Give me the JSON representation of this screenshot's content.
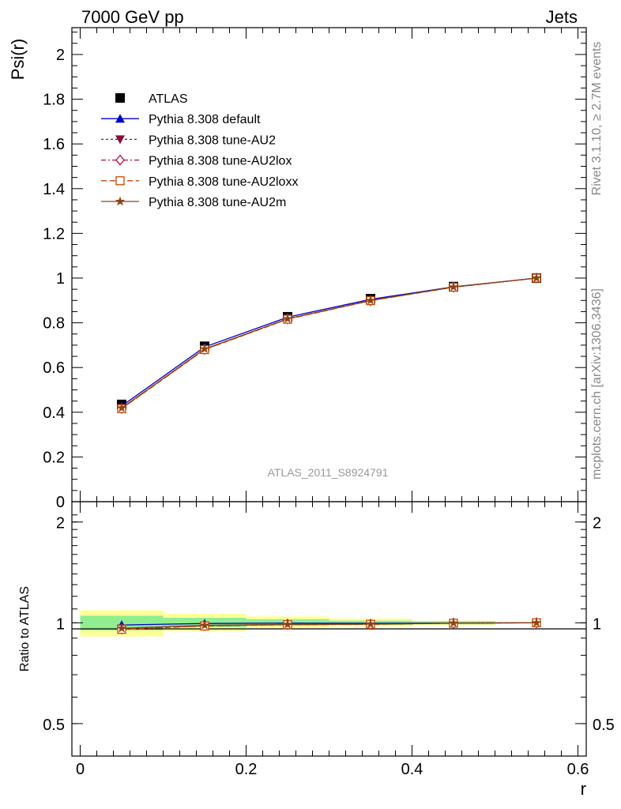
{
  "header": {
    "left": "7000 GeV pp",
    "right": "Jets"
  },
  "side_text": {
    "rivet": "Rivet 3.1.10, ≥ 2.7M events",
    "mcplots": "mcplots.cern.ch [arXiv:1306.3436]"
  },
  "watermark": "ATLAS_2011_S8924791",
  "chart_data": [
    {
      "type": "line",
      "panel": "main",
      "ylabel": "Psi(r)",
      "xlabel": "",
      "xlim": [
        -0.01,
        0.61
      ],
      "ylim": [
        0,
        2.12
      ],
      "y_ticks": [
        0,
        0.2,
        0.4,
        0.6,
        0.8,
        1,
        1.2,
        1.4,
        1.6,
        1.8,
        2
      ],
      "y_tick_labels": [
        "0",
        "0.2",
        "0.4",
        "0.6",
        "0.8",
        "1",
        "1.2",
        "1.4",
        "1.6",
        "1.8",
        "2"
      ],
      "legend_position": "top-left",
      "x": [
        0.05,
        0.15,
        0.25,
        0.35,
        0.45,
        0.55
      ],
      "series": [
        {
          "name": "ATLAS",
          "values": [
            0.435,
            0.695,
            0.827,
            0.908,
            0.962,
            1.0
          ],
          "color": "#000000",
          "marker": "square-filled",
          "style": "markers"
        },
        {
          "name": "Pythia 8.308 default",
          "values": [
            0.428,
            0.692,
            0.825,
            0.905,
            0.961,
            1.0
          ],
          "color": "#0000cc",
          "marker": "triangle-up-filled",
          "style": "solid"
        },
        {
          "name": "Pythia 8.308 tune-AU2",
          "values": [
            0.418,
            0.682,
            0.818,
            0.9,
            0.96,
            1.0
          ],
          "color": "#8b0a3c",
          "marker": "triangle-down-filled",
          "style": "dotted"
        },
        {
          "name": "Pythia 8.308 tune-AU2lox",
          "values": [
            0.417,
            0.681,
            0.817,
            0.899,
            0.96,
            1.0
          ],
          "color": "#b0103a",
          "marker": "diamond-open",
          "style": "dashdot"
        },
        {
          "name": "Pythia 8.308 tune-AU2loxx",
          "values": [
            0.416,
            0.68,
            0.816,
            0.899,
            0.959,
            1.0
          ],
          "color": "#cc4400",
          "marker": "square-open",
          "style": "dashed"
        },
        {
          "name": "Pythia 8.308 tune-AU2m",
          "values": [
            0.419,
            0.683,
            0.818,
            0.9,
            0.96,
            1.0
          ],
          "color": "#8b4513",
          "marker": "star",
          "style": "solid"
        }
      ]
    },
    {
      "type": "line",
      "panel": "ratio",
      "ylabel": "Ratio to ATLAS",
      "xlabel": "r",
      "xlim": [
        -0.01,
        0.61
      ],
      "ylim": [
        0.4,
        2.3
      ],
      "y_scale": "log",
      "x_ticks": [
        0,
        0.2,
        0.4,
        0.6
      ],
      "x_tick_labels": [
        "0",
        "0.2",
        "0.4",
        "0.6"
      ],
      "y_ticks": [
        0.5,
        1,
        2
      ],
      "y_tick_labels": [
        "0.5",
        "1",
        "2"
      ],
      "bins": [
        [
          0.0,
          0.1
        ],
        [
          0.1,
          0.2
        ],
        [
          0.2,
          0.3
        ],
        [
          0.3,
          0.4
        ],
        [
          0.4,
          0.5
        ]
      ],
      "band_inner": [
        [
          0.95,
          1.05
        ],
        [
          0.97,
          1.035
        ],
        [
          0.98,
          1.025
        ],
        [
          0.985,
          1.015
        ],
        [
          0.99,
          1.01
        ]
      ],
      "band_outer": [
        [
          0.91,
          1.09
        ],
        [
          0.945,
          1.065
        ],
        [
          0.965,
          1.045
        ],
        [
          0.975,
          1.03
        ],
        [
          0.985,
          1.015
        ]
      ],
      "band_inner_color": "#90ee90",
      "band_outer_color": "#ffff99",
      "x": [
        0.05,
        0.15,
        0.25,
        0.35,
        0.45,
        0.55
      ],
      "series": [
        {
          "name": "Pythia 8.308 default",
          "values": [
            0.985,
            0.995,
            0.998,
            0.997,
            0.999,
            1.0
          ],
          "color": "#0000cc",
          "marker": "triangle-up-filled",
          "style": "solid"
        },
        {
          "name": "Pythia 8.308 tune-AU2",
          "values": [
            0.962,
            0.981,
            0.989,
            0.992,
            0.998,
            1.0
          ],
          "color": "#8b0a3c",
          "marker": "triangle-down-filled",
          "style": "dotted"
        },
        {
          "name": "Pythia 8.308 tune-AU2lox",
          "values": [
            0.959,
            0.98,
            0.988,
            0.99,
            0.998,
            1.0
          ],
          "color": "#b0103a",
          "marker": "diamond-open",
          "style": "dashdot"
        },
        {
          "name": "Pythia 8.308 tune-AU2loxx",
          "values": [
            0.956,
            0.978,
            0.987,
            0.99,
            0.997,
            1.0
          ],
          "color": "#cc4400",
          "marker": "square-open",
          "style": "dashed"
        },
        {
          "name": "Pythia 8.308 tune-AU2m",
          "values": [
            0.963,
            0.983,
            0.989,
            0.991,
            0.998,
            1.0
          ],
          "color": "#8b4513",
          "marker": "star",
          "style": "solid"
        }
      ]
    }
  ]
}
